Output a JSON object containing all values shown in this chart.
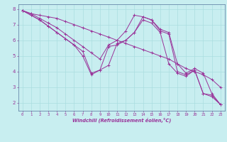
{
  "xlabel": "Windchill (Refroidissement éolien,°C)",
  "background_color": "#c8eef0",
  "grid_color": "#aadde0",
  "line_color": "#993399",
  "spine_color": "#6688aa",
  "xlim": [
    -0.5,
    23.5
  ],
  "ylim": [
    1.5,
    8.3
  ],
  "xticks": [
    0,
    1,
    2,
    3,
    4,
    5,
    6,
    7,
    8,
    9,
    10,
    11,
    12,
    13,
    14,
    15,
    16,
    17,
    18,
    19,
    20,
    21,
    22,
    23
  ],
  "yticks": [
    2,
    3,
    4,
    5,
    6,
    7,
    8
  ],
  "lines": [
    [
      7.9,
      7.7,
      7.6,
      7.5,
      7.4,
      7.2,
      7.0,
      6.8,
      6.6,
      6.4,
      6.2,
      6.0,
      5.8,
      5.6,
      5.4,
      5.2,
      5.0,
      4.8,
      4.5,
      4.2,
      4.0,
      3.8,
      3.5,
      3.0
    ],
    [
      7.9,
      7.7,
      7.4,
      7.1,
      6.8,
      6.4,
      6.0,
      5.6,
      5.2,
      4.8,
      5.7,
      6.0,
      6.6,
      7.6,
      7.5,
      7.3,
      6.7,
      6.5,
      4.5,
      3.9,
      4.2,
      3.9,
      2.6,
      1.9
    ],
    [
      7.9,
      7.6,
      7.3,
      6.9,
      6.5,
      6.1,
      5.7,
      5.3,
      3.9,
      4.1,
      4.4,
      5.8,
      6.0,
      6.5,
      7.5,
      7.3,
      6.6,
      6.4,
      4.0,
      3.8,
      4.1,
      2.6,
      2.5,
      1.9
    ],
    [
      7.9,
      7.6,
      7.3,
      6.9,
      6.5,
      6.1,
      5.7,
      5.0,
      3.8,
      4.1,
      5.6,
      5.7,
      6.0,
      6.5,
      7.3,
      7.1,
      6.5,
      4.5,
      3.9,
      3.7,
      4.1,
      2.6,
      2.4,
      1.9
    ]
  ]
}
